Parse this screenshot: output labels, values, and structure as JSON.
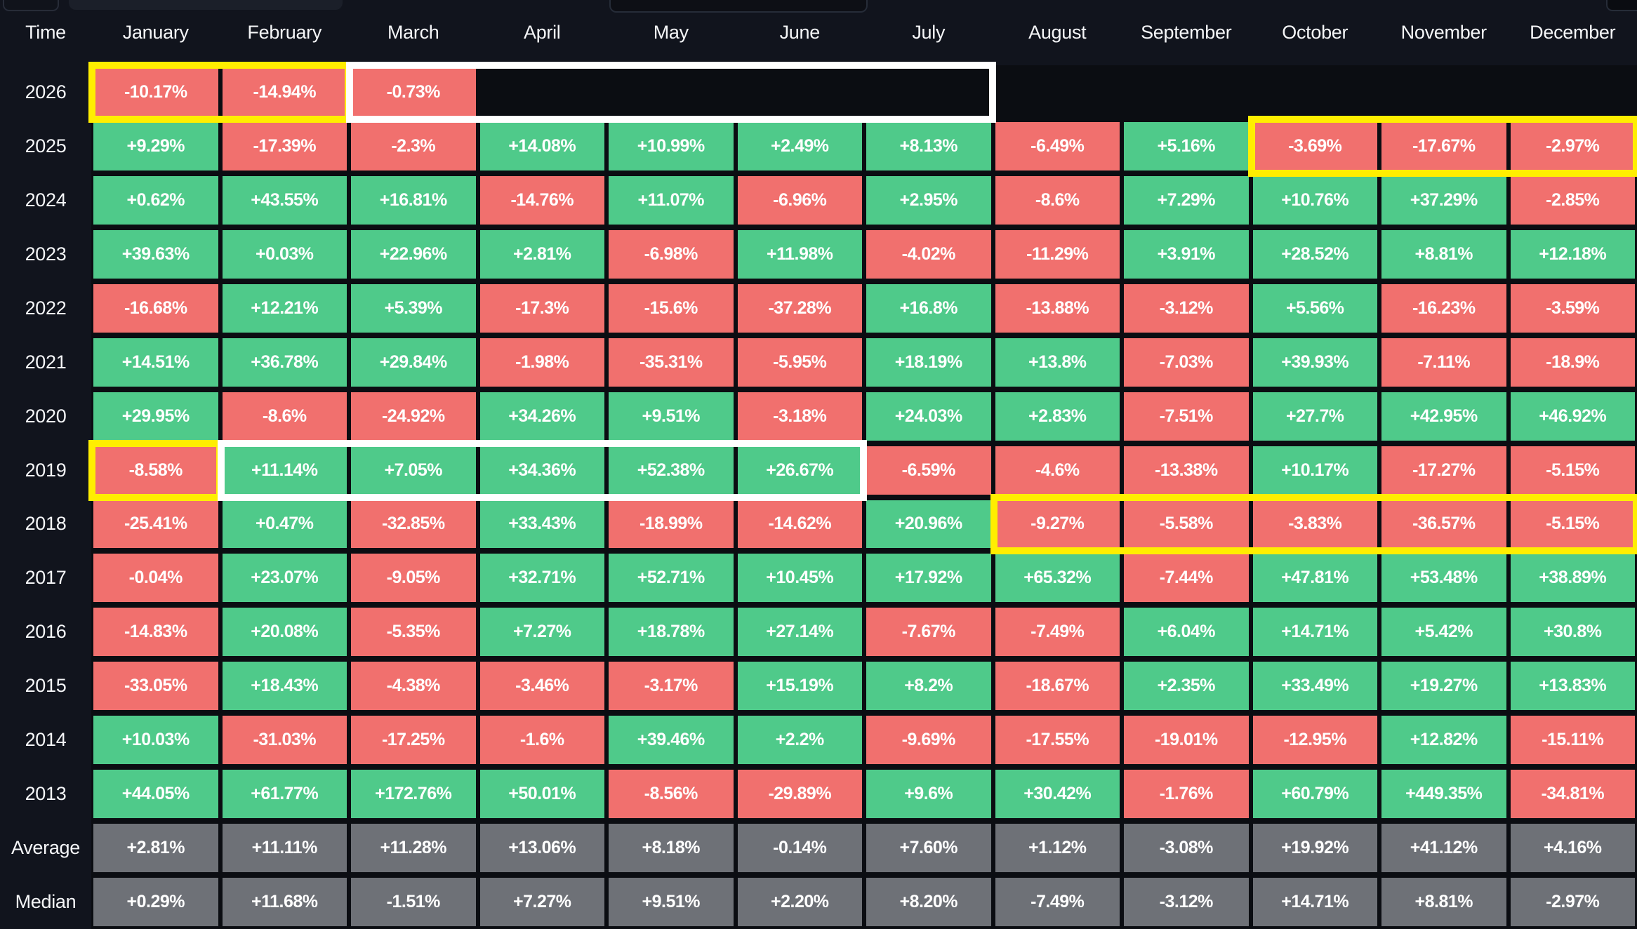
{
  "palette": {
    "green": "#4fca8a",
    "red": "#f1706e",
    "grey": "#6e7177",
    "highlight_yellow": "#ffee00",
    "highlight_white": "#ffffff",
    "background": "#11141d",
    "table_backdrop": "#0b0d12",
    "text": "#ffffff"
  },
  "table": {
    "time_header": "Time",
    "months": [
      "January",
      "February",
      "March",
      "April",
      "May",
      "June",
      "July",
      "August",
      "September",
      "October",
      "November",
      "December"
    ],
    "rows": [
      {
        "label": "2026",
        "type": "year",
        "values": [
          "-10.17%",
          "-14.94%",
          "-0.73%",
          "",
          "",
          "",
          "",
          "",
          "",
          "",
          "",
          ""
        ]
      },
      {
        "label": "2025",
        "type": "year",
        "values": [
          "+9.29%",
          "-17.39%",
          "-2.3%",
          "+14.08%",
          "+10.99%",
          "+2.49%",
          "+8.13%",
          "-6.49%",
          "+5.16%",
          "-3.69%",
          "-17.67%",
          "-2.97%"
        ]
      },
      {
        "label": "2024",
        "type": "year",
        "values": [
          "+0.62%",
          "+43.55%",
          "+16.81%",
          "-14.76%",
          "+11.07%",
          "-6.96%",
          "+2.95%",
          "-8.6%",
          "+7.29%",
          "+10.76%",
          "+37.29%",
          "-2.85%"
        ]
      },
      {
        "label": "2023",
        "type": "year",
        "values": [
          "+39.63%",
          "+0.03%",
          "+22.96%",
          "+2.81%",
          "-6.98%",
          "+11.98%",
          "-4.02%",
          "-11.29%",
          "+3.91%",
          "+28.52%",
          "+8.81%",
          "+12.18%"
        ]
      },
      {
        "label": "2022",
        "type": "year",
        "values": [
          "-16.68%",
          "+12.21%",
          "+5.39%",
          "-17.3%",
          "-15.6%",
          "-37.28%",
          "+16.8%",
          "-13.88%",
          "-3.12%",
          "+5.56%",
          "-16.23%",
          "-3.59%"
        ]
      },
      {
        "label": "2021",
        "type": "year",
        "values": [
          "+14.51%",
          "+36.78%",
          "+29.84%",
          "-1.98%",
          "-35.31%",
          "-5.95%",
          "+18.19%",
          "+13.8%",
          "-7.03%",
          "+39.93%",
          "-7.11%",
          "-18.9%"
        ]
      },
      {
        "label": "2020",
        "type": "year",
        "values": [
          "+29.95%",
          "-8.6%",
          "-24.92%",
          "+34.26%",
          "+9.51%",
          "-3.18%",
          "+24.03%",
          "+2.83%",
          "-7.51%",
          "+27.7%",
          "+42.95%",
          "+46.92%"
        ]
      },
      {
        "label": "2019",
        "type": "year",
        "values": [
          "-8.58%",
          "+11.14%",
          "+7.05%",
          "+34.36%",
          "+52.38%",
          "+26.67%",
          "-6.59%",
          "-4.6%",
          "-13.38%",
          "+10.17%",
          "-17.27%",
          "-5.15%"
        ]
      },
      {
        "label": "2018",
        "type": "year",
        "values": [
          "-25.41%",
          "+0.47%",
          "-32.85%",
          "+33.43%",
          "-18.99%",
          "-14.62%",
          "+20.96%",
          "-9.27%",
          "-5.58%",
          "-3.83%",
          "-36.57%",
          "-5.15%"
        ]
      },
      {
        "label": "2017",
        "type": "year",
        "values": [
          "-0.04%",
          "+23.07%",
          "-9.05%",
          "+32.71%",
          "+52.71%",
          "+10.45%",
          "+17.92%",
          "+65.32%",
          "-7.44%",
          "+47.81%",
          "+53.48%",
          "+38.89%"
        ]
      },
      {
        "label": "2016",
        "type": "year",
        "values": [
          "-14.83%",
          "+20.08%",
          "-5.35%",
          "+7.27%",
          "+18.78%",
          "+27.14%",
          "-7.67%",
          "-7.49%",
          "+6.04%",
          "+14.71%",
          "+5.42%",
          "+30.8%"
        ]
      },
      {
        "label": "2015",
        "type": "year",
        "values": [
          "-33.05%",
          "+18.43%",
          "-4.38%",
          "-3.46%",
          "-3.17%",
          "+15.19%",
          "+8.2%",
          "-18.67%",
          "+2.35%",
          "+33.49%",
          "+19.27%",
          "+13.83%"
        ]
      },
      {
        "label": "2014",
        "type": "year",
        "values": [
          "+10.03%",
          "-31.03%",
          "-17.25%",
          "-1.6%",
          "+39.46%",
          "+2.2%",
          "-9.69%",
          "-17.55%",
          "-19.01%",
          "-12.95%",
          "+12.82%",
          "-15.11%"
        ]
      },
      {
        "label": "2013",
        "type": "year",
        "values": [
          "+44.05%",
          "+61.77%",
          "+172.76%",
          "+50.01%",
          "-8.56%",
          "-29.89%",
          "+9.6%",
          "+30.42%",
          "-1.76%",
          "+60.79%",
          "+449.35%",
          "-34.81%"
        ]
      },
      {
        "label": "Average",
        "type": "summary",
        "values": [
          "+2.81%",
          "+11.11%",
          "+11.28%",
          "+13.06%",
          "+8.18%",
          "-0.14%",
          "+7.60%",
          "+1.12%",
          "-3.08%",
          "+19.92%",
          "+41.12%",
          "+4.16%"
        ]
      },
      {
        "label": "Median",
        "type": "summary",
        "values": [
          "+0.29%",
          "+11.68%",
          "-1.51%",
          "+7.27%",
          "+9.51%",
          "+2.20%",
          "+8.20%",
          "-7.49%",
          "-3.12%",
          "+14.71%",
          "+8.81%",
          "-2.97%"
        ]
      }
    ],
    "highlights": [
      {
        "row": "2026",
        "from": 1,
        "to": 2,
        "color": "yellow"
      },
      {
        "row": "2026",
        "from": 3,
        "to": 7,
        "color": "white"
      },
      {
        "row": "2025",
        "from": 10,
        "to": 12,
        "color": "yellow"
      },
      {
        "row": "2019",
        "from": 1,
        "to": 1,
        "color": "yellow"
      },
      {
        "row": "2019",
        "from": 2,
        "to": 6,
        "color": "white"
      },
      {
        "row": "2018",
        "from": 8,
        "to": 12,
        "color": "yellow"
      }
    ]
  }
}
